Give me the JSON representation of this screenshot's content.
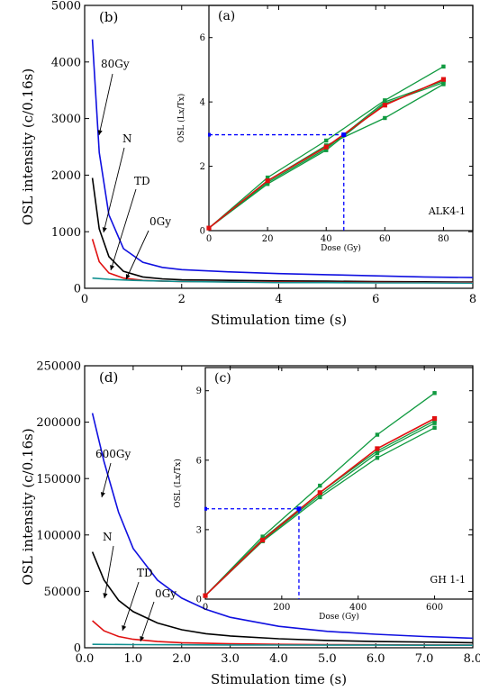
{
  "chart_data": [
    {
      "id": "b",
      "panel_label": "(b)",
      "type": "line",
      "xlabel": "Stimulation time (s)",
      "ylabel": "OSL intensity (c/0.16s)",
      "xlim": [
        0,
        8
      ],
      "ylim": [
        0,
        5000
      ],
      "xticks": [
        0,
        2,
        4,
        6,
        8
      ],
      "xtick_labels": [
        "0",
        "2",
        "4",
        "6",
        "8"
      ],
      "yticks": [
        0,
        1000,
        2000,
        3000,
        4000,
        5000
      ],
      "ytick_labels": [
        "0",
        "1000",
        "2000",
        "3000",
        "4000",
        "5000"
      ],
      "annotations": [
        "80Gy",
        "N",
        "TD",
        "0Gy"
      ],
      "series": [
        {
          "key": "80Gy",
          "color": "#1010e0",
          "x": [
            0.16,
            0.3,
            0.5,
            0.8,
            1.2,
            1.6,
            2,
            3,
            4,
            5,
            6,
            7,
            8
          ],
          "y": [
            4400,
            2400,
            1300,
            700,
            460,
            370,
            330,
            290,
            260,
            240,
            220,
            200,
            190
          ]
        },
        {
          "key": "N",
          "color": "#000000",
          "x": [
            0.16,
            0.3,
            0.5,
            0.8,
            1.2,
            1.6,
            2,
            3,
            4,
            5,
            6,
            7,
            8
          ],
          "y": [
            1950,
            1050,
            560,
            300,
            200,
            165,
            150,
            140,
            130,
            125,
            120,
            115,
            110
          ]
        },
        {
          "key": "TD",
          "color": "#e01010",
          "x": [
            0.16,
            0.3,
            0.5,
            0.8,
            1.2,
            1.6,
            2,
            3,
            4,
            5,
            6,
            7,
            8
          ],
          "y": [
            870,
            470,
            270,
            180,
            140,
            125,
            120,
            115,
            110,
            105,
            105,
            100,
            100
          ]
        },
        {
          "key": "0Gy",
          "color": "#109090",
          "x": [
            0.16,
            0.5,
            1,
            2,
            3,
            4,
            5,
            6,
            7,
            8
          ],
          "y": [
            180,
            160,
            140,
            120,
            110,
            100,
            100,
            95,
            95,
            90
          ]
        }
      ]
    },
    {
      "id": "a",
      "panel_label": "(a)",
      "sample_label": "ALK4-1",
      "type": "line",
      "xlabel": "Dose (Gy)",
      "ylabel": "OSL (Lx/Tx)",
      "xlim": [
        0,
        90
      ],
      "ylim": [
        0,
        7
      ],
      "xticks": [
        0,
        20,
        40,
        60,
        80
      ],
      "xtick_labels": [
        "0",
        "20",
        "40",
        "60",
        "80"
      ],
      "yticks": [
        0,
        2,
        4,
        6
      ],
      "ytick_labels": [
        "0",
        "2",
        "4",
        "6"
      ],
      "x": [
        0,
        20,
        40,
        60,
        80
      ],
      "green_curves": [
        [
          0.08,
          1.65,
          2.8,
          4.05,
          5.1
        ],
        [
          0.08,
          1.55,
          2.65,
          3.5,
          4.55
        ],
        [
          0.08,
          1.45,
          2.5,
          3.95,
          4.6
        ],
        [
          0.08,
          1.5,
          2.55,
          4.0,
          4.65
        ]
      ],
      "red_curve": [
        0.08,
        1.55,
        2.6,
        3.9,
        4.7
      ],
      "equivalent_dose": {
        "x": 46,
        "y": 2.98
      }
    },
    {
      "id": "d",
      "panel_label": "(d)",
      "type": "line",
      "xlabel": "Stimulation time (s)",
      "ylabel": "OSL intensity (c/0.16s)",
      "xlim": [
        0,
        8
      ],
      "ylim": [
        0,
        250000
      ],
      "xticks": [
        0,
        1,
        2,
        3,
        4,
        5,
        6,
        7,
        8
      ],
      "xtick_labels": [
        "0.0",
        "1.0",
        "2.0",
        "3.0",
        "4.0",
        "5.0",
        "6.0",
        "7.0",
        "8.0"
      ],
      "yticks": [
        0,
        50000,
        100000,
        150000,
        200000,
        250000
      ],
      "ytick_labels": [
        "0",
        "50000",
        "100000",
        "150000",
        "200000",
        "250000"
      ],
      "annotations": [
        "600Gy",
        "N",
        "TD",
        "0Gy"
      ],
      "series": [
        {
          "key": "600Gy",
          "color": "#1010e0",
          "x": [
            0.16,
            0.4,
            0.7,
            1,
            1.5,
            2,
            2.5,
            3,
            4,
            5,
            6,
            7,
            8
          ],
          "y": [
            208000,
            165000,
            120000,
            88000,
            60000,
            44000,
            34000,
            27000,
            19000,
            14500,
            12000,
            10000,
            8500
          ]
        },
        {
          "key": "N",
          "color": "#000000",
          "x": [
            0.16,
            0.4,
            0.7,
            1,
            1.5,
            2,
            2.5,
            3,
            4,
            5,
            6,
            7,
            8
          ],
          "y": [
            85000,
            60000,
            42000,
            32000,
            22000,
            16000,
            12500,
            10500,
            8000,
            6500,
            5500,
            5000,
            4500
          ]
        },
        {
          "key": "TD",
          "color": "#e01010",
          "x": [
            0.16,
            0.4,
            0.7,
            1,
            1.5,
            2,
            3,
            4,
            5,
            6,
            7,
            8
          ],
          "y": [
            24000,
            15000,
            10000,
            7500,
            5500,
            4500,
            3500,
            3000,
            2800,
            2600,
            2500,
            2400
          ]
        },
        {
          "key": "0Gy",
          "color": "#109090",
          "x": [
            0.16,
            1,
            2,
            3,
            4,
            5,
            6,
            7,
            8
          ],
          "y": [
            3000,
            2800,
            2600,
            2500,
            2400,
            2300,
            2300,
            2200,
            2200
          ]
        }
      ]
    },
    {
      "id": "c",
      "panel_label": "(c)",
      "sample_label": "GH 1-1",
      "type": "line",
      "xlabel": "Dose (Gy)",
      "ylabel": "OSL (Lx/Tx)",
      "xlim": [
        0,
        700
      ],
      "ylim": [
        0,
        10
      ],
      "xticks": [
        0,
        200,
        400,
        600
      ],
      "xtick_labels": [
        "0",
        "200",
        "400",
        "600"
      ],
      "yticks": [
        0,
        3,
        6,
        9
      ],
      "ytick_labels": [
        "0",
        "3",
        "6",
        "9"
      ],
      "x": [
        0,
        150,
        300,
        450,
        600
      ],
      "green_curves": [
        [
          0.15,
          2.7,
          4.9,
          7.1,
          8.9
        ],
        [
          0.15,
          2.6,
          4.6,
          6.4,
          7.7
        ],
        [
          0.15,
          2.5,
          4.4,
          6.1,
          7.4
        ],
        [
          0.15,
          2.55,
          4.5,
          6.3,
          7.6
        ]
      ],
      "red_curve": [
        0.15,
        2.55,
        4.6,
        6.5,
        7.8
      ],
      "equivalent_dose": {
        "x": 245,
        "y": 3.9
      }
    }
  ]
}
